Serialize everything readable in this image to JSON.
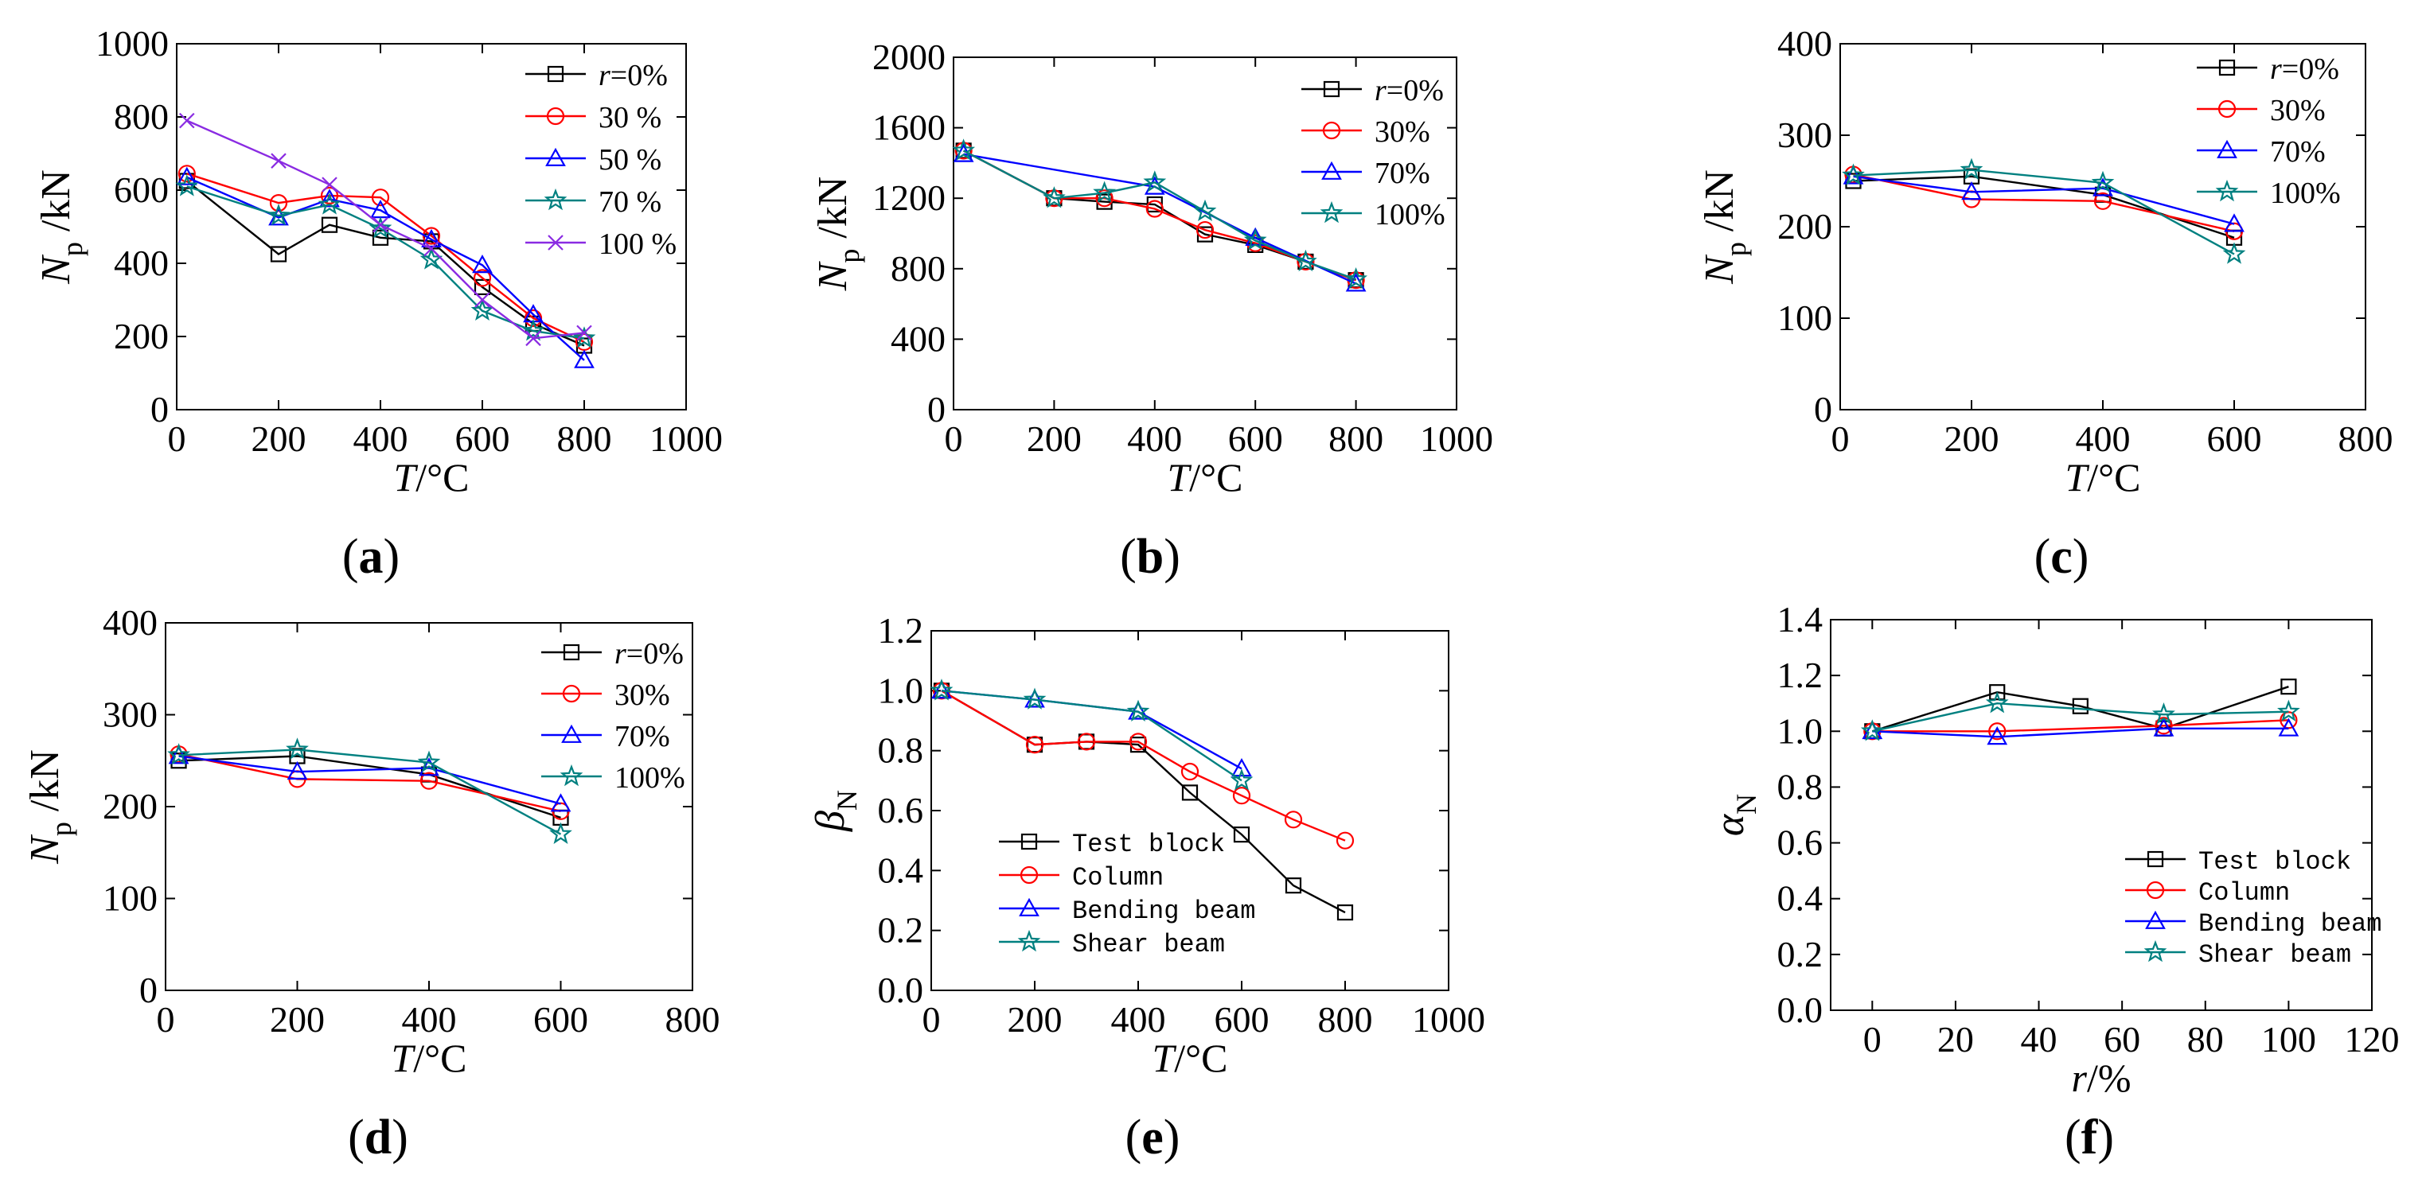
{
  "chart_data": [
    {
      "type": "line",
      "panel_label": "(a)",
      "panel_letter": "a",
      "xlabel_var": "T",
      "xlabel_unit": "/°C",
      "ylabel_var": "N",
      "ylabel_sub": "p",
      "ylabel_unit": "/kN",
      "xlim": [
        0,
        1000
      ],
      "ylim": [
        0,
        1000
      ],
      "xticks": [
        0,
        200,
        400,
        600,
        800,
        1000
      ],
      "yticks": [
        0,
        200,
        400,
        600,
        800,
        1000
      ],
      "legend_position": "top-right",
      "legend_font": "serif",
      "series": [
        {
          "name": "r=0%",
          "name_var": "r",
          "name_rest": "=0%",
          "color": "#000000",
          "marker": "square",
          "x": [
            20,
            200,
            300,
            400,
            500,
            600,
            700,
            800
          ],
          "y": [
            625,
            425,
            505,
            470,
            460,
            335,
            235,
            175
          ]
        },
        {
          "name": "30 %",
          "color": "#ff0000",
          "marker": "circle",
          "x": [
            20,
            200,
            300,
            400,
            500,
            600,
            700,
            800
          ],
          "y": [
            645,
            565,
            585,
            580,
            475,
            360,
            250,
            185
          ]
        },
        {
          "name": "50 %",
          "color": "#0000ff",
          "marker": "triangle",
          "x": [
            20,
            200,
            300,
            400,
            500,
            600,
            700,
            800
          ],
          "y": [
            635,
            525,
            575,
            545,
            465,
            395,
            260,
            135
          ]
        },
        {
          "name": "70 %",
          "color": "#008080",
          "marker": "star",
          "x": [
            20,
            200,
            300,
            400,
            500,
            600,
            700,
            800
          ],
          "y": [
            610,
            530,
            560,
            495,
            410,
            270,
            215,
            195
          ]
        },
        {
          "name": "100 %",
          "color": "#8a2be2",
          "marker": "cross",
          "x": [
            20,
            200,
            300,
            400,
            500,
            600,
            700,
            800
          ],
          "y": [
            790,
            680,
            615,
            505,
            440,
            300,
            195,
            210
          ]
        }
      ]
    },
    {
      "type": "line",
      "panel_label": "(b)",
      "panel_letter": "b",
      "xlabel_var": "T",
      "xlabel_unit": "/°C",
      "ylabel_var": "N",
      "ylabel_sub": "p",
      "ylabel_unit": "/kN",
      "xlim": [
        0,
        1000
      ],
      "ylim": [
        0,
        2000
      ],
      "xticks": [
        0,
        200,
        400,
        600,
        800,
        1000
      ],
      "yticks": [
        0,
        400,
        800,
        1200,
        1600,
        2000
      ],
      "legend_position": "top-right",
      "legend_font": "serif",
      "series": [
        {
          "name": "r=0%",
          "name_var": "r",
          "name_rest": "=0%",
          "color": "#000000",
          "marker": "square",
          "x": [
            20,
            200,
            300,
            400,
            500,
            600,
            700,
            800
          ],
          "y": [
            1470,
            1200,
            1180,
            1165,
            995,
            935,
            840,
            735
          ]
        },
        {
          "name": "30%",
          "color": "#ff0000",
          "marker": "circle",
          "x": [
            20,
            200,
            300,
            400,
            500,
            600,
            700,
            800
          ],
          "y": [
            1470,
            1200,
            1200,
            1140,
            1020,
            945,
            840,
            735
          ]
        },
        {
          "name": "70%",
          "color": "#0000ff",
          "marker": "triangle",
          "x": [
            20,
            400,
            600,
            800
          ],
          "y": [
            1450,
            1265,
            975,
            715
          ]
        },
        {
          "name": "100%",
          "color": "#008080",
          "marker": "star",
          "x": [
            20,
            200,
            300,
            400,
            500,
            600,
            700,
            800
          ],
          "y": [
            1470,
            1200,
            1230,
            1290,
            1125,
            960,
            840,
            740
          ]
        }
      ]
    },
    {
      "type": "line",
      "panel_label": "(c)",
      "panel_letter": "c",
      "xlabel_var": "T",
      "xlabel_unit": "/°C",
      "ylabel_var": "N",
      "ylabel_sub": "p",
      "ylabel_unit": "/kN",
      "xlim": [
        0,
        800
      ],
      "ylim": [
        0,
        400
      ],
      "xticks": [
        0,
        200,
        400,
        600,
        800
      ],
      "yticks": [
        0,
        100,
        200,
        300,
        400
      ],
      "legend_position": "top-right",
      "legend_font": "serif",
      "series": [
        {
          "name": "r=0%",
          "name_var": "r",
          "name_rest": "=0%",
          "color": "#000000",
          "marker": "square",
          "x": [
            20,
            200,
            400,
            600
          ],
          "y": [
            250,
            255,
            235,
            188
          ]
        },
        {
          "name": "30%",
          "color": "#ff0000",
          "marker": "circle",
          "x": [
            20,
            200,
            400,
            600
          ],
          "y": [
            257,
            230,
            228,
            195
          ]
        },
        {
          "name": "70%",
          "color": "#0000ff",
          "marker": "triangle",
          "x": [
            20,
            200,
            400,
            600
          ],
          "y": [
            255,
            238,
            242,
            203
          ]
        },
        {
          "name": "100%",
          "color": "#008080",
          "marker": "star",
          "x": [
            20,
            200,
            400,
            600
          ],
          "y": [
            256,
            262,
            248,
            170
          ]
        }
      ]
    },
    {
      "type": "line",
      "panel_label": "(d)",
      "panel_letter": "d",
      "xlabel_var": "T",
      "xlabel_unit": "/°C",
      "ylabel_var": "N",
      "ylabel_sub": "p",
      "ylabel_unit": "/kN",
      "xlim": [
        0,
        800
      ],
      "ylim": [
        0,
        400
      ],
      "xticks": [
        0,
        200,
        400,
        600,
        800
      ],
      "yticks": [
        0,
        100,
        200,
        300,
        400
      ],
      "legend_position": "top-right",
      "legend_font": "serif",
      "series": [
        {
          "name": "r=0%",
          "name_var": "r",
          "name_rest": "=0%",
          "color": "#000000",
          "marker": "square",
          "x": [
            20,
            200,
            400,
            600
          ],
          "y": [
            250,
            255,
            235,
            188
          ]
        },
        {
          "name": "30%",
          "color": "#ff0000",
          "marker": "circle",
          "x": [
            20,
            200,
            400,
            600
          ],
          "y": [
            257,
            230,
            228,
            195
          ]
        },
        {
          "name": "70%",
          "color": "#0000ff",
          "marker": "triangle",
          "x": [
            20,
            200,
            400,
            600
          ],
          "y": [
            255,
            238,
            242,
            203
          ]
        },
        {
          "name": "100%",
          "color": "#008080",
          "marker": "star",
          "x": [
            20,
            200,
            400,
            600
          ],
          "y": [
            256,
            262,
            248,
            170
          ]
        }
      ]
    },
    {
      "type": "line",
      "panel_label": "(e)",
      "panel_letter": "e",
      "xlabel_var": "T",
      "xlabel_unit": "/°C",
      "ylabel_var": "β",
      "ylabel_sub": "N",
      "ylabel_unit": "",
      "xlim": [
        0,
        1000
      ],
      "ylim": [
        0,
        1.2
      ],
      "xticks": [
        0,
        200,
        400,
        600,
        800,
        1000
      ],
      "yticks": [
        0.0,
        0.2,
        0.4,
        0.6,
        0.8,
        1.0,
        1.2
      ],
      "ytick_decimals": 1,
      "legend_position": "bottom-left",
      "legend_font": "mono",
      "series": [
        {
          "name": "Test block",
          "color": "#000000",
          "marker": "square",
          "x": [
            20,
            200,
            300,
            400,
            500,
            600,
            700,
            800
          ],
          "y": [
            1.0,
            0.82,
            0.83,
            0.82,
            0.66,
            0.52,
            0.35,
            0.26
          ]
        },
        {
          "name": "Column",
          "color": "#ff0000",
          "marker": "circle",
          "x": [
            20,
            200,
            300,
            400,
            500,
            600,
            700,
            800
          ],
          "y": [
            1.0,
            0.82,
            0.83,
            0.83,
            0.73,
            0.65,
            0.57,
            0.5
          ]
        },
        {
          "name": "Bending beam",
          "color": "#0000ff",
          "marker": "triangle",
          "x": [
            20,
            200,
            400,
            600
          ],
          "y": [
            1.0,
            0.97,
            0.93,
            0.74
          ]
        },
        {
          "name": "Shear beam",
          "color": "#008080",
          "marker": "star",
          "x": [
            20,
            200,
            400,
            600
          ],
          "y": [
            1.0,
            0.97,
            0.93,
            0.7
          ]
        }
      ]
    },
    {
      "type": "line",
      "panel_label": "(f)",
      "panel_letter": "f",
      "xlabel_var": "r",
      "xlabel_unit": "/%",
      "ylabel_var": "α",
      "ylabel_sub": "N",
      "ylabel_unit": "",
      "xlim": [
        -10,
        120
      ],
      "ylim": [
        0,
        1.4
      ],
      "xticks": [
        0,
        20,
        40,
        60,
        80,
        100,
        120
      ],
      "yticks": [
        0.0,
        0.2,
        0.4,
        0.6,
        0.8,
        1.0,
        1.2,
        1.4
      ],
      "ytick_decimals": 1,
      "legend_position": "bottom-right",
      "legend_font": "mono",
      "series": [
        {
          "name": "Test block",
          "color": "#000000",
          "marker": "square",
          "x": [
            0,
            30,
            50,
            70,
            100
          ],
          "y": [
            1.0,
            1.14,
            1.09,
            1.01,
            1.16
          ]
        },
        {
          "name": "Column",
          "color": "#ff0000",
          "marker": "circle",
          "x": [
            0,
            30,
            70,
            100
          ],
          "y": [
            1.0,
            1.0,
            1.02,
            1.04
          ]
        },
        {
          "name": "Bending beam",
          "color": "#0000ff",
          "marker": "triangle",
          "x": [
            0,
            30,
            70,
            100
          ],
          "y": [
            1.0,
            0.98,
            1.01,
            1.01
          ]
        },
        {
          "name": "Shear beam",
          "color": "#008080",
          "marker": "star",
          "x": [
            0,
            30,
            70,
            100
          ],
          "y": [
            1.0,
            1.1,
            1.06,
            1.07
          ]
        }
      ]
    }
  ]
}
